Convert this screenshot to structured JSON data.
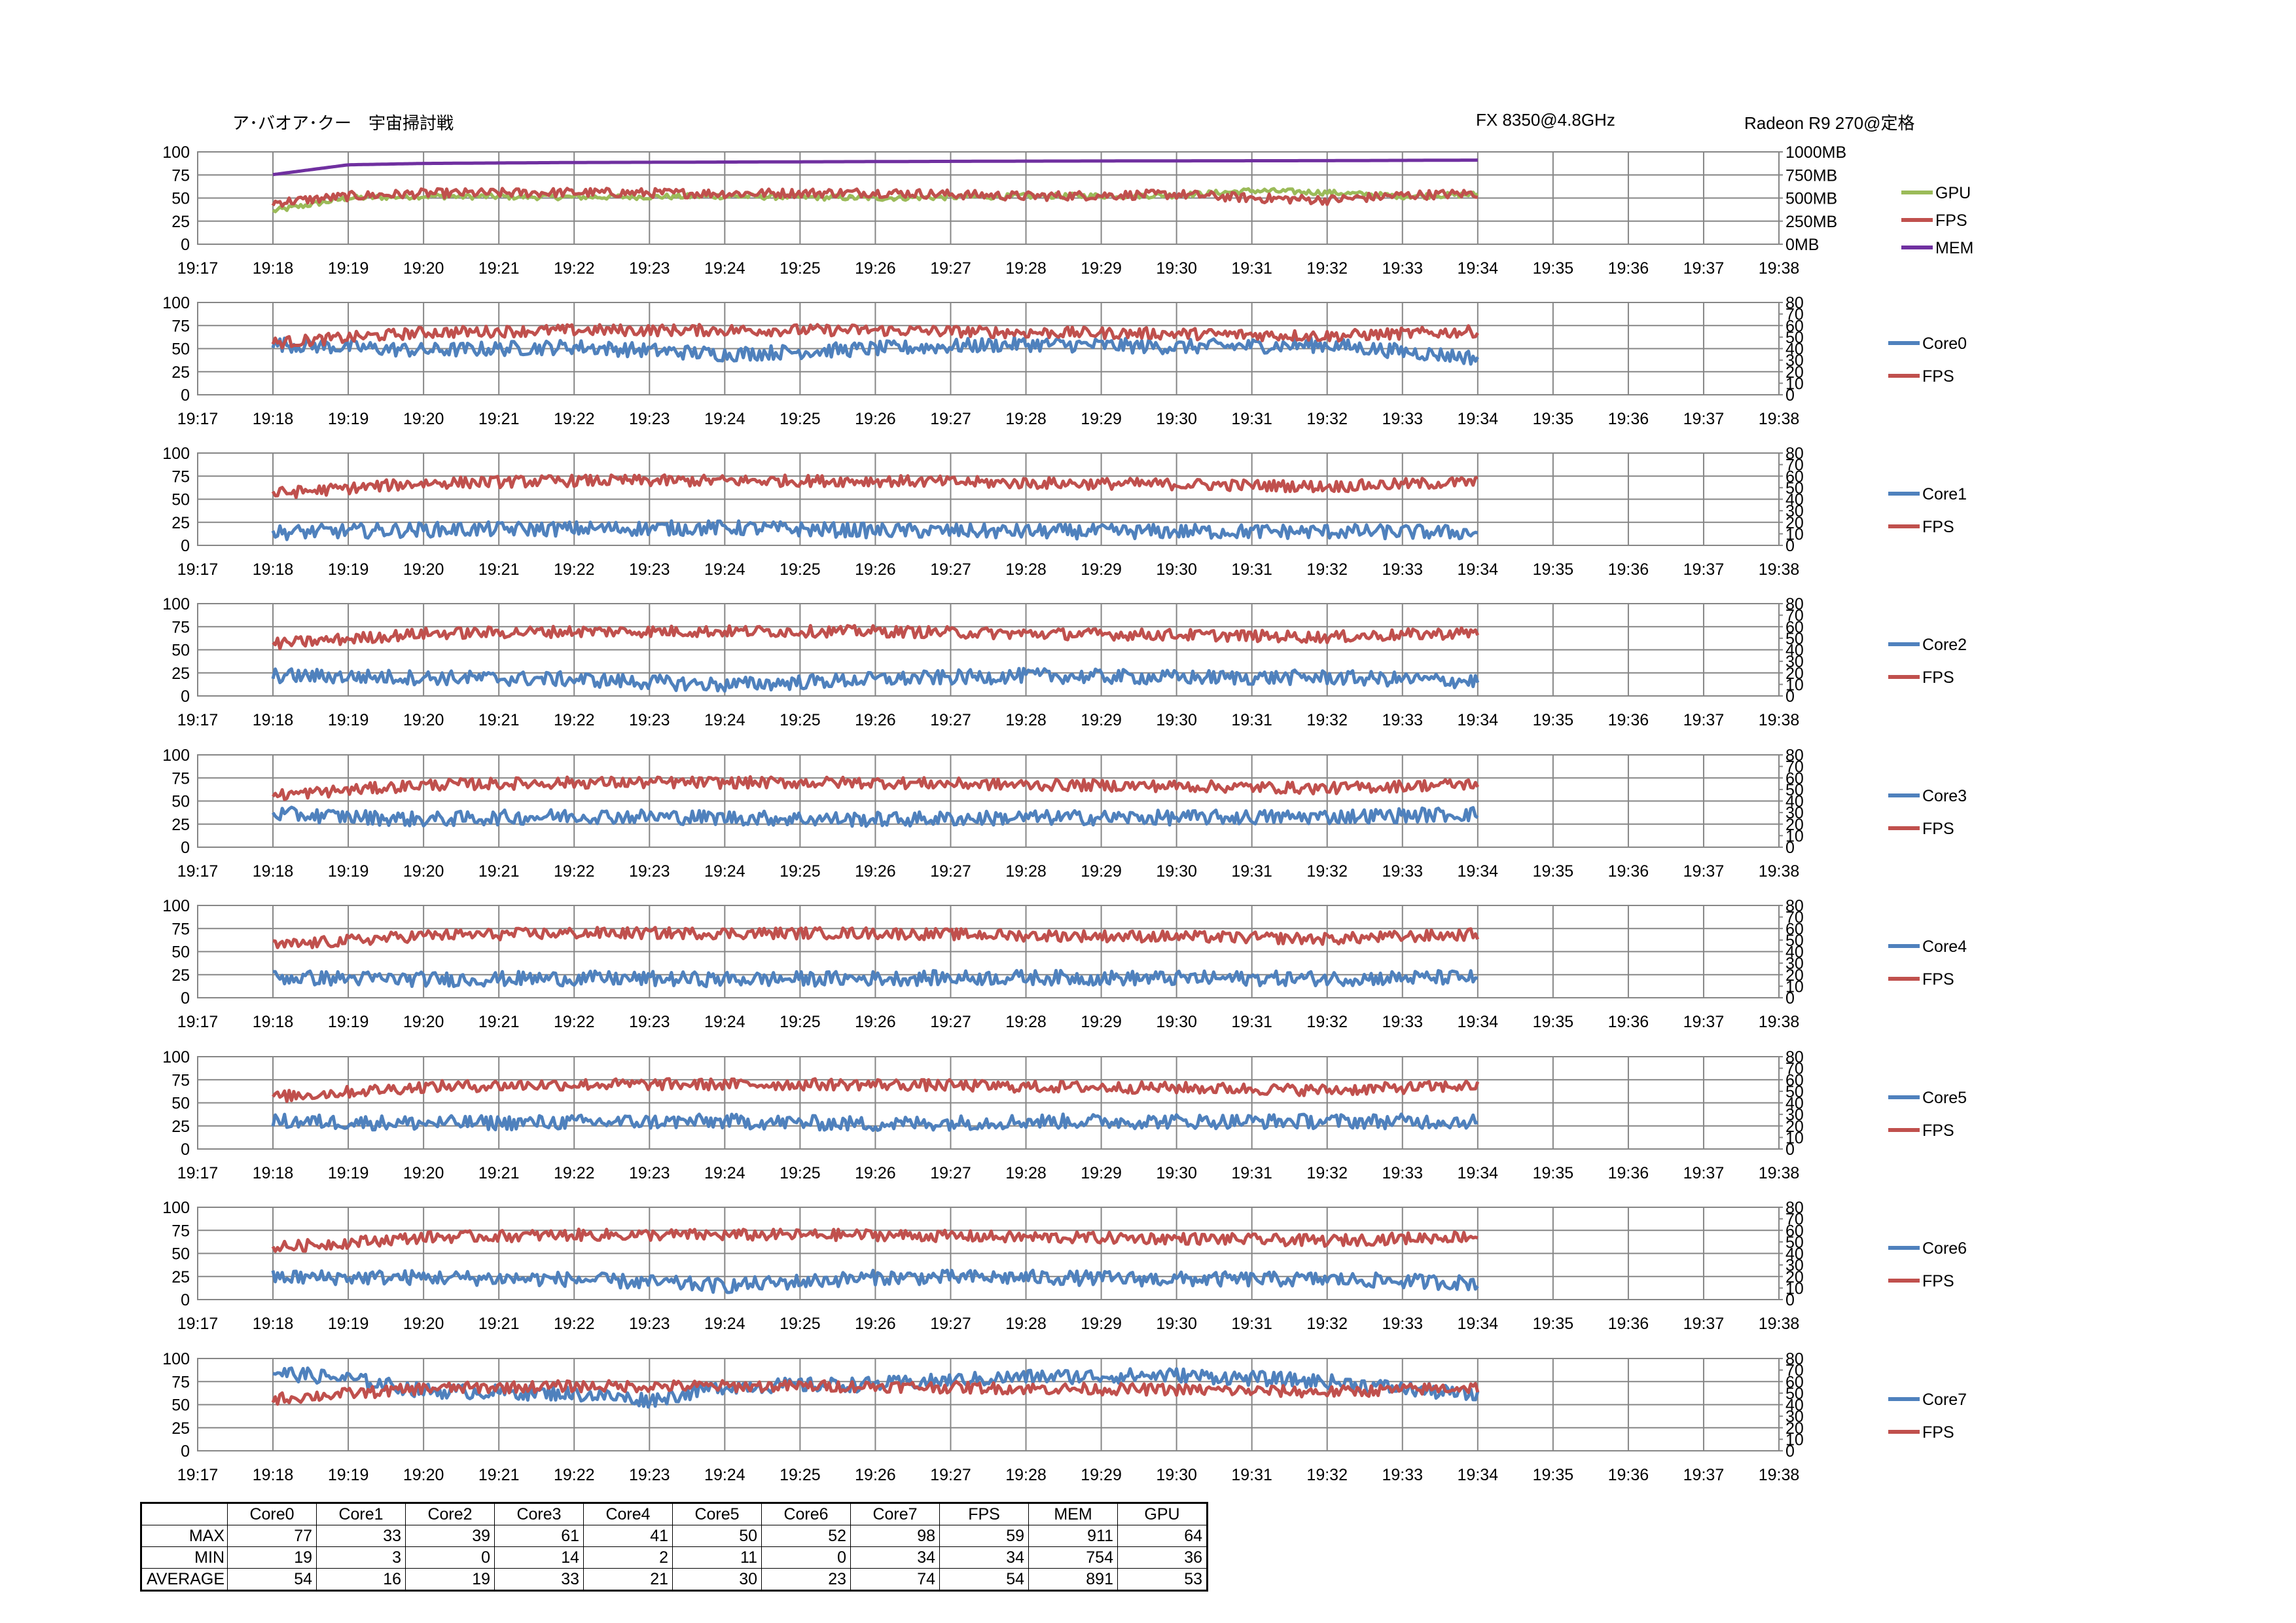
{
  "header": {
    "title": "ア･バオア･クー　宇宙掃討戦",
    "cpu": "FX 8350@4.8GHz",
    "gpu": "Radeon R9 270@定格"
  },
  "colors": {
    "gpu": "#9BBB59",
    "fps": "#C0504D",
    "mem": "#7030A0",
    "core": "#4F81BD",
    "grid": "#868686"
  },
  "chart_data": [
    {
      "type": "line",
      "x_ticks": [
        "19:17",
        "19:18",
        "19:19",
        "19:20",
        "19:21",
        "19:22",
        "19:23",
        "19:24",
        "19:25",
        "19:26",
        "19:27",
        "19:28",
        "19:29",
        "19:30",
        "19:31",
        "19:32",
        "19:33",
        "19:34",
        "19:35",
        "19:36",
        "19:37",
        "19:38"
      ],
      "xlim": [
        "19:17",
        "19:38"
      ],
      "y_ticks": [
        "0",
        "25",
        "50",
        "75",
        "100"
      ],
      "ylim": [
        0,
        100
      ],
      "y2_ticks": [
        "0MB",
        "250MB",
        "500MB",
        "750MB",
        "1000MB"
      ],
      "y2lim": [
        0,
        1000
      ],
      "legend": [
        "GPU",
        "FPS",
        "MEM"
      ],
      "series": [
        {
          "name": "GPU",
          "axis": "y",
          "x": [
            "19:18",
            "19:19",
            "19:20",
            "19:22",
            "19:24",
            "19:26",
            "19:28",
            "19:30",
            "19:31",
            "19:32",
            "19:33",
            "19:34"
          ],
          "values": [
            36,
            50,
            52,
            51,
            52,
            50,
            52,
            53,
            58,
            56,
            52,
            54
          ]
        },
        {
          "name": "FPS",
          "axis": "y",
          "x": [
            "19:18",
            "19:19",
            "19:20",
            "19:22",
            "19:24",
            "19:26",
            "19:28",
            "19:30",
            "19:31",
            "19:32",
            "19:33",
            "19:34"
          ],
          "values": [
            45,
            52,
            55,
            56,
            55,
            56,
            52,
            54,
            50,
            48,
            53,
            55
          ]
        },
        {
          "name": "MEM",
          "axis": "y2",
          "x": [
            "19:18",
            "19:19",
            "19:20",
            "19:22",
            "19:24",
            "19:26",
            "19:28",
            "19:30",
            "19:32",
            "19:34"
          ],
          "values": [
            754,
            860,
            875,
            885,
            890,
            895,
            900,
            903,
            905,
            911
          ]
        }
      ]
    },
    {
      "type": "line",
      "legend": [
        "Core0",
        "FPS"
      ],
      "y_ticks": [
        "0",
        "25",
        "50",
        "75",
        "100"
      ],
      "ylim": [
        0,
        100
      ],
      "y2_ticks": [
        "0",
        "10",
        "20",
        "30",
        "40",
        "50",
        "60",
        "70",
        "80"
      ],
      "y2lim": [
        0,
        80
      ],
      "series": [
        {
          "name": "Core0",
          "axis": "y",
          "x": [
            "19:18",
            "19:20",
            "19:22",
            "19:24",
            "19:26",
            "19:28",
            "19:30",
            "19:32",
            "19:34"
          ],
          "values": [
            55,
            48,
            52,
            44,
            50,
            55,
            52,
            54,
            40
          ]
        },
        {
          "name": "FPS",
          "axis": "y2",
          "x": [
            "19:18",
            "19:20",
            "19:22",
            "19:24",
            "19:26",
            "19:28",
            "19:30",
            "19:32",
            "19:34"
          ],
          "values": [
            45,
            54,
            56,
            56,
            56,
            54,
            53,
            51,
            55
          ]
        }
      ]
    },
    {
      "type": "line",
      "legend": [
        "Core1",
        "FPS"
      ],
      "y_ticks": [
        "0",
        "25",
        "50",
        "75",
        "100"
      ],
      "ylim": [
        0,
        100
      ],
      "y2_ticks": [
        "0",
        "10",
        "20",
        "30",
        "40",
        "50",
        "60",
        "70",
        "80"
      ],
      "y2lim": [
        0,
        80
      ],
      "series": [
        {
          "name": "Core1",
          "axis": "y",
          "x": [
            "19:18",
            "19:20",
            "19:22",
            "19:24",
            "19:26",
            "19:28",
            "19:30",
            "19:32",
            "19:34"
          ],
          "values": [
            14,
            17,
            18,
            19,
            16,
            15,
            15,
            15,
            14
          ]
        },
        {
          "name": "FPS",
          "axis": "y2",
          "x": [
            "19:18",
            "19:20",
            "19:22",
            "19:24",
            "19:26",
            "19:28",
            "19:30",
            "19:32",
            "19:34"
          ],
          "values": [
            45,
            54,
            56,
            56,
            56,
            54,
            53,
            51,
            55
          ]
        }
      ]
    },
    {
      "type": "line",
      "legend": [
        "Core2",
        "FPS"
      ],
      "y_ticks": [
        "0",
        "25",
        "50",
        "75",
        "100"
      ],
      "ylim": [
        0,
        100
      ],
      "y2_ticks": [
        "0",
        "10",
        "20",
        "30",
        "40",
        "50",
        "60",
        "70",
        "80"
      ],
      "y2lim": [
        0,
        80
      ],
      "series": [
        {
          "name": "Core2",
          "axis": "y",
          "x": [
            "19:18",
            "19:20",
            "19:22",
            "19:24",
            "19:26",
            "19:28",
            "19:30",
            "19:32",
            "19:34"
          ],
          "values": [
            22,
            20,
            18,
            12,
            18,
            22,
            20,
            20,
            16
          ]
        },
        {
          "name": "FPS",
          "axis": "y2",
          "x": [
            "19:18",
            "19:20",
            "19:22",
            "19:24",
            "19:26",
            "19:28",
            "19:30",
            "19:32",
            "19:34"
          ],
          "values": [
            45,
            54,
            56,
            56,
            56,
            54,
            53,
            51,
            55
          ]
        }
      ]
    },
    {
      "type": "line",
      "legend": [
        "Core3",
        "FPS"
      ],
      "y_ticks": [
        "0",
        "25",
        "50",
        "75",
        "100"
      ],
      "ylim": [
        0,
        100
      ],
      "y2_ticks": [
        "0",
        "10",
        "20",
        "30",
        "40",
        "50",
        "60",
        "70",
        "80"
      ],
      "y2lim": [
        0,
        80
      ],
      "series": [
        {
          "name": "Core3",
          "axis": "y",
          "x": [
            "19:18",
            "19:20",
            "19:22",
            "19:24",
            "19:26",
            "19:28",
            "19:30",
            "19:32",
            "19:34"
          ],
          "values": [
            36,
            30,
            34,
            32,
            30,
            32,
            32,
            33,
            36
          ]
        },
        {
          "name": "FPS",
          "axis": "y2",
          "x": [
            "19:18",
            "19:20",
            "19:22",
            "19:24",
            "19:26",
            "19:28",
            "19:30",
            "19:32",
            "19:34"
          ],
          "values": [
            45,
            54,
            56,
            56,
            56,
            54,
            53,
            51,
            55
          ]
        }
      ]
    },
    {
      "type": "line",
      "legend": [
        "Core4",
        "FPS"
      ],
      "y_ticks": [
        "0",
        "25",
        "50",
        "75",
        "100"
      ],
      "ylim": [
        0,
        100
      ],
      "y2_ticks": [
        "0",
        "10",
        "20",
        "30",
        "40",
        "50",
        "60",
        "70",
        "80"
      ],
      "y2lim": [
        0,
        80
      ],
      "series": [
        {
          "name": "Core4",
          "axis": "y",
          "x": [
            "19:18",
            "19:20",
            "19:22",
            "19:24",
            "19:26",
            "19:28",
            "19:30",
            "19:32",
            "19:34"
          ],
          "values": [
            22,
            20,
            21,
            20,
            21,
            22,
            21,
            21,
            22
          ]
        },
        {
          "name": "FPS",
          "axis": "y2",
          "x": [
            "19:18",
            "19:20",
            "19:22",
            "19:24",
            "19:26",
            "19:28",
            "19:30",
            "19:32",
            "19:34"
          ],
          "values": [
            45,
            54,
            56,
            56,
            56,
            54,
            53,
            51,
            55
          ]
        }
      ]
    },
    {
      "type": "line",
      "legend": [
        "Core5",
        "FPS"
      ],
      "y_ticks": [
        "0",
        "25",
        "50",
        "75",
        "100"
      ],
      "ylim": [
        0,
        100
      ],
      "y2_ticks": [
        "0",
        "10",
        "20",
        "30",
        "40",
        "50",
        "60",
        "70",
        "80"
      ],
      "y2lim": [
        0,
        80
      ],
      "series": [
        {
          "name": "Core5",
          "axis": "y",
          "x": [
            "19:18",
            "19:20",
            "19:22",
            "19:24",
            "19:26",
            "19:28",
            "19:30",
            "19:32",
            "19:34"
          ],
          "values": [
            30,
            28,
            29,
            30,
            27,
            30,
            30,
            30,
            30
          ]
        },
        {
          "name": "FPS",
          "axis": "y2",
          "x": [
            "19:18",
            "19:20",
            "19:22",
            "19:24",
            "19:26",
            "19:28",
            "19:30",
            "19:32",
            "19:34"
          ],
          "values": [
            45,
            54,
            56,
            56,
            56,
            54,
            53,
            51,
            55
          ]
        }
      ]
    },
    {
      "type": "line",
      "legend": [
        "Core6",
        "FPS"
      ],
      "y_ticks": [
        "0",
        "25",
        "50",
        "75",
        "100"
      ],
      "ylim": [
        0,
        100
      ],
      "y2_ticks": [
        "0",
        "10",
        "20",
        "30",
        "40",
        "50",
        "60",
        "70",
        "80"
      ],
      "y2lim": [
        0,
        80
      ],
      "series": [
        {
          "name": "Core6",
          "axis": "y",
          "x": [
            "19:18",
            "19:20",
            "19:22",
            "19:24",
            "19:26",
            "19:28",
            "19:30",
            "19:32",
            "19:34"
          ],
          "values": [
            24,
            24,
            22,
            15,
            24,
            24,
            22,
            22,
            18
          ]
        },
        {
          "name": "FPS",
          "axis": "y2",
          "x": [
            "19:18",
            "19:20",
            "19:22",
            "19:24",
            "19:26",
            "19:28",
            "19:30",
            "19:32",
            "19:34"
          ],
          "values": [
            45,
            54,
            56,
            56,
            56,
            54,
            53,
            51,
            55
          ]
        }
      ]
    },
    {
      "type": "line",
      "legend": [
        "Core7",
        "FPS"
      ],
      "y_ticks": [
        "0",
        "25",
        "50",
        "75",
        "100"
      ],
      "ylim": [
        0,
        100
      ],
      "y2_ticks": [
        "0",
        "10",
        "20",
        "30",
        "40",
        "50",
        "60",
        "70",
        "80"
      ],
      "y2lim": [
        0,
        80
      ],
      "series": [
        {
          "name": "Core7",
          "axis": "y",
          "x": [
            "19:18",
            "19:19",
            "19:20",
            "19:22",
            "19:23",
            "19:24",
            "19:26",
            "19:28",
            "19:30",
            "19:32",
            "19:34"
          ],
          "values": [
            85,
            78,
            65,
            62,
            55,
            70,
            72,
            80,
            82,
            75,
            60
          ]
        },
        {
          "name": "FPS",
          "axis": "y2",
          "x": [
            "19:18",
            "19:20",
            "19:22",
            "19:24",
            "19:26",
            "19:28",
            "19:30",
            "19:32",
            "19:34"
          ],
          "values": [
            45,
            54,
            56,
            56,
            56,
            54,
            53,
            51,
            55
          ]
        }
      ]
    }
  ],
  "stats": {
    "columns": [
      "Core0",
      "Core1",
      "Core2",
      "Core3",
      "Core4",
      "Core5",
      "Core6",
      "Core7",
      "FPS",
      "MEM",
      "GPU"
    ],
    "rows": [
      {
        "label": "MAX",
        "values": [
          "77",
          "33",
          "39",
          "61",
          "41",
          "50",
          "52",
          "98",
          "59",
          "911",
          "64"
        ]
      },
      {
        "label": "MIN",
        "values": [
          "19",
          "3",
          "0",
          "14",
          "2",
          "11",
          "0",
          "34",
          "34",
          "754",
          "36"
        ]
      },
      {
        "label": "AVERAGE",
        "values": [
          "54",
          "16",
          "19",
          "33",
          "21",
          "30",
          "23",
          "74",
          "54",
          "891",
          "53"
        ]
      }
    ]
  }
}
